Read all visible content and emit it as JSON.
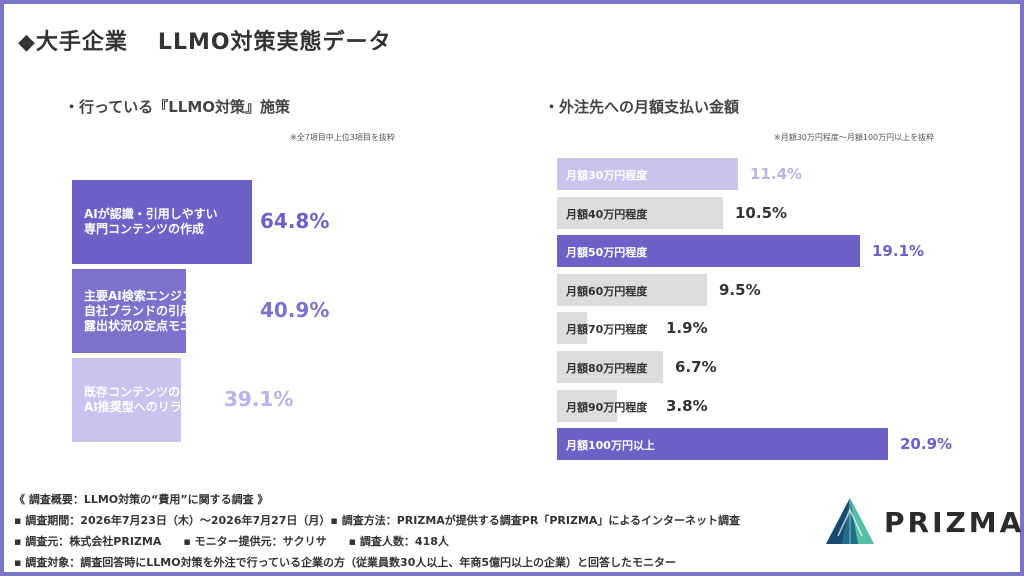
{
  "title_left": "◆大手企業",
  "title_right": "LLMO対策実態データ",
  "left_chart": {
    "section_title": "・行っている『LLMO対策』施策",
    "note": "※全7項目中上位3項目を抜粋"
  },
  "right_chart": {
    "section_title": "・外注先への月額支払い金額",
    "note": "※月額30万円程度〜月額100万円以上を抜粋"
  },
  "colors": {
    "frame": "#7b74c9",
    "dark_purple": "#6b61c7",
    "mid_purple": "#7b72cc",
    "light_purple": "#c9c3ee",
    "gray": "#dcdcdc"
  },
  "chart_data": [
    {
      "type": "bar",
      "orientation": "horizontal",
      "categories": [
        [
          "AIが認識・引用しやすい",
          "専門コンテンツの作成"
        ],
        [
          "主要AI検索エンジンにおける",
          "自社ブランドの引用・",
          "露出状況の定点モニタリング"
        ],
        [
          "既存コンテンツの",
          "AI推奨型へのリライト"
        ]
      ],
      "values": [
        64.8,
        40.9,
        39.1
      ],
      "value_labels": [
        "64.8%",
        "40.9%",
        "39.1%"
      ],
      "xlim": [
        0,
        100
      ],
      "bar_colors": [
        "#6b61c7",
        "#7b72cc",
        "#c9c3ee"
      ]
    },
    {
      "type": "bar",
      "orientation": "horizontal",
      "categories": [
        "月額30万円程度",
        "月額40万円程度",
        "月額50万円程度",
        "月額60万円程度",
        "月額70万円程度",
        "月額80万円程度",
        "月額90万円程度",
        "月額100万円以上"
      ],
      "values": [
        11.4,
        10.5,
        19.1,
        9.5,
        1.9,
        6.7,
        3.8,
        20.9
      ],
      "value_labels": [
        "11.4%",
        "10.5%",
        "19.1%",
        "9.5%",
        "1.9%",
        "6.7%",
        "3.8%",
        "20.9%"
      ],
      "xlim": [
        0,
        100
      ],
      "bar_colors": [
        "#c9c3ee",
        "#dcdcdc",
        "#6b61c7",
        "#dcdcdc",
        "#dcdcdc",
        "#dcdcdc",
        "#dcdcdc",
        "#6b61c7"
      ]
    }
  ],
  "footer": {
    "line1": "《 調査概要：LLMO対策の“費用”に関する調査 》",
    "line2": "▪ 調査期間：2026年7月23日（木）〜2026年7月27日（月）▪ 調査方法：PRIZMAが提供する調査PR「PRIZMA」によるインターネット調査",
    "line3": "▪ 調査元：株式会社PRIZMA　　▪ モニター提供元：サクリサ　　▪ 調査人数：418人",
    "line4": "▪ 調査対象：調査回答時にLLMO対策を外注で行っている企業の方（従業員数30人以上、年商5億円以上の企業）と回答したモニター"
  },
  "logo": {
    "text": "PRIZMA",
    "icon": "prizma-prism-logo-icon"
  }
}
